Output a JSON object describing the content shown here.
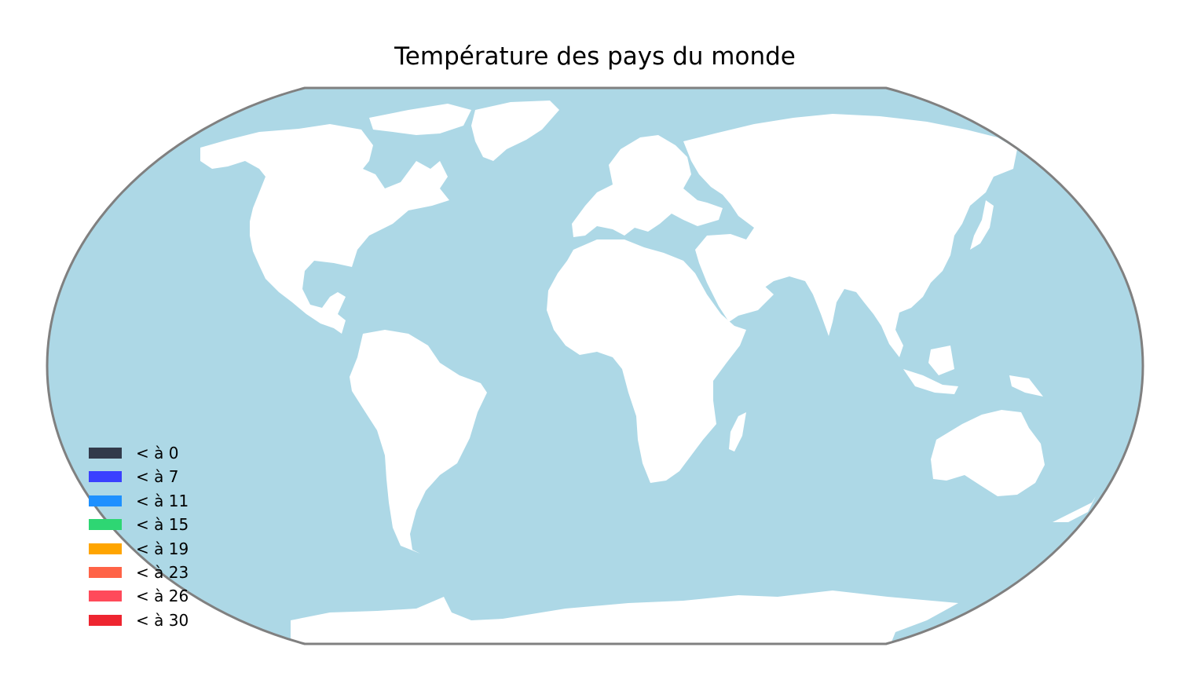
{
  "title": "Température des pays du monde",
  "colors": {
    "ocean": "#add8e6",
    "land": "#ffffff",
    "frame": "#808080"
  },
  "legend": [
    {
      "label": "< à 0",
      "color": "#323a4a"
    },
    {
      "label": "< à 7",
      "color": "#3a40ff"
    },
    {
      "label": "< à 11",
      "color": "#1e90ff"
    },
    {
      "label": "< à 15",
      "color": "#2ed673"
    },
    {
      "label": "< à 19",
      "color": "#ffa500"
    },
    {
      "label": "< à 23",
      "color": "#ff6347"
    },
    {
      "label": "< à 26",
      "color": "#ff4a5a"
    },
    {
      "label": "< à 30",
      "color": "#ee2530"
    }
  ]
}
